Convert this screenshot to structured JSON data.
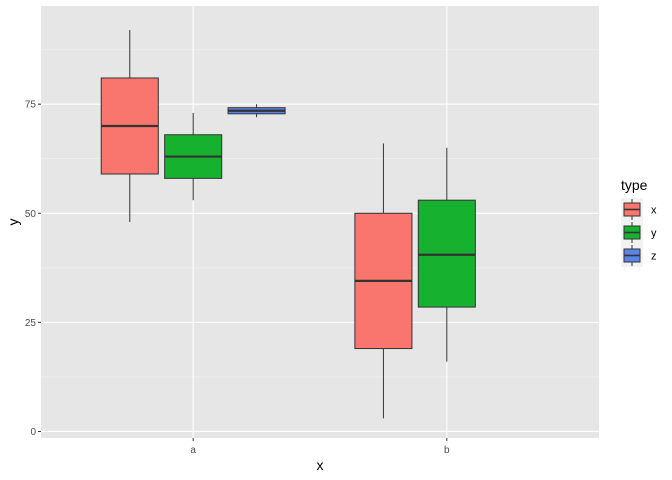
{
  "chart_data": {
    "type": "boxplot",
    "title": "",
    "xlabel": "x",
    "ylabel": "y",
    "categories": [
      "a",
      "b"
    ],
    "ylim": [
      -1.5,
      97.5
    ],
    "yticks": [
      0,
      25,
      50,
      75
    ],
    "ytick_labels": [
      "0",
      "25",
      "50",
      "75"
    ],
    "grid": true,
    "legend": {
      "title": "type",
      "placement": "right"
    },
    "series": [
      {
        "name": "x",
        "color": "#F8766D",
        "boxes": [
          {
            "category": "a",
            "min": 48,
            "q1": 59,
            "median": 70,
            "q3": 81,
            "max": 92
          },
          {
            "category": "b",
            "min": 3,
            "q1": 19,
            "median": 34.5,
            "q3": 50,
            "max": 66
          }
        ]
      },
      {
        "name": "y",
        "color": "#16B12F",
        "boxes": [
          {
            "category": "a",
            "min": 53,
            "q1": 58,
            "median": 63,
            "q3": 68,
            "max": 73
          },
          {
            "category": "b",
            "min": 16,
            "q1": 28.5,
            "median": 40.5,
            "q3": 53,
            "max": 65
          }
        ]
      },
      {
        "name": "z",
        "color": "#5B84E9",
        "boxes": [
          {
            "category": "a",
            "min": 72,
            "q1": 72.8,
            "median": 73.5,
            "q3": 74.2,
            "max": 75
          }
        ]
      }
    ]
  }
}
